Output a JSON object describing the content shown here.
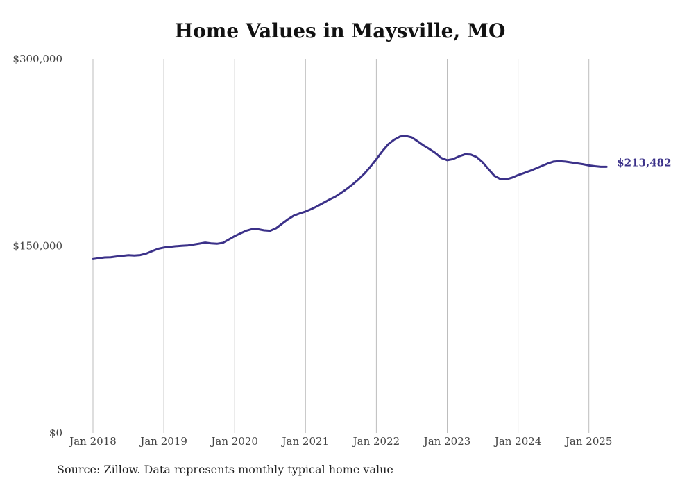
{
  "chart_data": {
    "type": "line",
    "title": "Home Values in Maysville, MO",
    "xlabel": "",
    "ylabel": "",
    "ylim": [
      0,
      300000
    ],
    "yticks": [
      {
        "value": 0,
        "label": "$0"
      },
      {
        "value": 150000,
        "label": "$150,000"
      },
      {
        "value": 300000,
        "label": "$300,000"
      }
    ],
    "xticks": [
      {
        "value": "2018-01",
        "label": "Jan 2018"
      },
      {
        "value": "2019-01",
        "label": "Jan 2019"
      },
      {
        "value": "2020-01",
        "label": "Jan 2020"
      },
      {
        "value": "2021-01",
        "label": "Jan 2021"
      },
      {
        "value": "2022-01",
        "label": "Jan 2022"
      },
      {
        "value": "2023-01",
        "label": "Jan 2023"
      },
      {
        "value": "2024-01",
        "label": "Jan 2024"
      },
      {
        "value": "2025-01",
        "label": "Jan 2025"
      }
    ],
    "grid": "vertical",
    "line_color": "#3b3189",
    "series": [
      {
        "end_label": "$213,482",
        "x": [
          "2018-01",
          "2018-02",
          "2018-03",
          "2018-04",
          "2018-05",
          "2018-06",
          "2018-07",
          "2018-08",
          "2018-09",
          "2018-10",
          "2018-11",
          "2018-12",
          "2019-01",
          "2019-02",
          "2019-03",
          "2019-04",
          "2019-05",
          "2019-06",
          "2019-07",
          "2019-08",
          "2019-09",
          "2019-10",
          "2019-11",
          "2019-12",
          "2020-01",
          "2020-02",
          "2020-03",
          "2020-04",
          "2020-05",
          "2020-06",
          "2020-07",
          "2020-08",
          "2020-09",
          "2020-10",
          "2020-11",
          "2020-12",
          "2021-01",
          "2021-02",
          "2021-03",
          "2021-04",
          "2021-05",
          "2021-06",
          "2021-07",
          "2021-08",
          "2021-09",
          "2021-10",
          "2021-11",
          "2021-12",
          "2022-01",
          "2022-02",
          "2022-03",
          "2022-04",
          "2022-05",
          "2022-06",
          "2022-07",
          "2022-08",
          "2022-09",
          "2022-10",
          "2022-11",
          "2022-12",
          "2023-01",
          "2023-02",
          "2023-03",
          "2023-04",
          "2023-05",
          "2023-06",
          "2023-07",
          "2023-08",
          "2023-09",
          "2023-10",
          "2023-11",
          "2023-12",
          "2024-01",
          "2024-02",
          "2024-03",
          "2024-04",
          "2024-05",
          "2024-06",
          "2024-07",
          "2024-08",
          "2024-09",
          "2024-10",
          "2024-11",
          "2024-12",
          "2025-01",
          "2025-02",
          "2025-03",
          "2025-04"
        ],
        "values": [
          139500,
          140200,
          140800,
          141000,
          141600,
          142100,
          142600,
          142400,
          142700,
          143900,
          145800,
          147700,
          148700,
          149200,
          149800,
          150100,
          150400,
          151100,
          151900,
          152700,
          152100,
          151800,
          152500,
          155200,
          157900,
          160200,
          162300,
          163600,
          163400,
          162500,
          162200,
          164200,
          167800,
          171300,
          174300,
          176100,
          177600,
          179600,
          181900,
          184500,
          187100,
          189400,
          192500,
          195800,
          199500,
          203600,
          208200,
          213700,
          219600,
          226000,
          231500,
          235200,
          237800,
          238300,
          237100,
          233900,
          230600,
          227700,
          224600,
          220600,
          218800,
          219700,
          221900,
          223500,
          223300,
          221300,
          217100,
          211600,
          206200,
          203700,
          203500,
          204800,
          206800,
          208500,
          210200,
          212100,
          214100,
          216100,
          217700,
          218000,
          217700,
          217000,
          216300,
          215600,
          214600,
          214000,
          213500,
          213482
        ]
      }
    ]
  },
  "source_note": "Source: Zillow. Data represents monthly typical home value"
}
